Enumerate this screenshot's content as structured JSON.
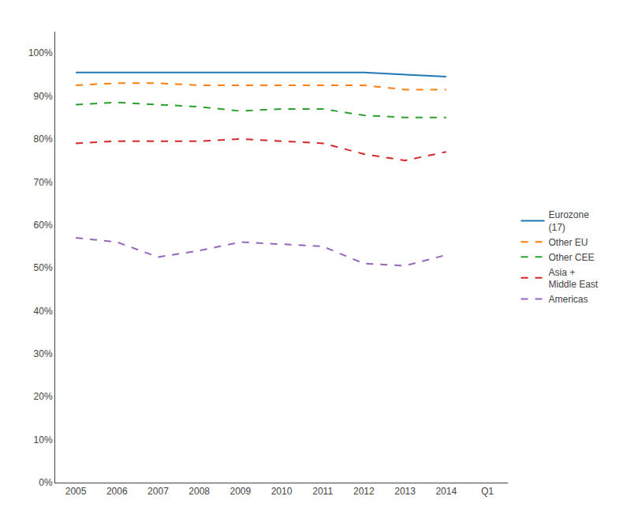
{
  "chart_data": {
    "type": "line",
    "categories": [
      "2005",
      "2006",
      "2007",
      "2008",
      "2009",
      "2010",
      "2011",
      "2012",
      "2013",
      "2014",
      "Q1"
    ],
    "series": [
      {
        "name": "Eurozone\n(17)",
        "line_style": "solid",
        "values": [
          95.5,
          95.5,
          95.5,
          95.5,
          95.5,
          95.5,
          95.5,
          95.5,
          95.0,
          94.5,
          null
        ]
      },
      {
        "name": "Other EU",
        "line_style": "dash",
        "values": [
          92.5,
          93.0,
          93.0,
          92.5,
          92.5,
          92.5,
          92.5,
          92.5,
          91.5,
          91.5,
          null
        ]
      },
      {
        "name": "Other CEE",
        "line_style": "dash",
        "values": [
          88.0,
          88.5,
          88.0,
          87.5,
          86.5,
          87.0,
          87.0,
          85.5,
          85.0,
          85.0,
          null
        ]
      },
      {
        "name": "Asia +\nMiddle East",
        "line_style": "dash",
        "values": [
          79.0,
          79.5,
          79.5,
          79.5,
          80.0,
          79.5,
          79.0,
          76.5,
          75.0,
          77.0,
          null
        ]
      },
      {
        "name": "Americas",
        "line_style": "dash",
        "values": [
          57.0,
          56.0,
          52.5,
          54.0,
          56.0,
          55.5,
          55.0,
          51.0,
          50.5,
          53.0,
          null
        ]
      }
    ],
    "ylim": [
      0,
      105
    ],
    "yticks": [
      {
        "value": 0,
        "label": "0%"
      },
      {
        "value": 10,
        "label": "10%"
      },
      {
        "value": 20,
        "label": "20%"
      },
      {
        "value": 30,
        "label": "30%"
      },
      {
        "value": 40,
        "label": "40%"
      },
      {
        "value": 50,
        "label": "50%"
      },
      {
        "value": 60,
        "label": "60%"
      },
      {
        "value": 70,
        "label": "70%"
      },
      {
        "value": 80,
        "label": "80%"
      },
      {
        "value": 90,
        "label": "90%"
      },
      {
        "value": 100,
        "label": "100%"
      }
    ],
    "grid": false,
    "legend": "right"
  }
}
